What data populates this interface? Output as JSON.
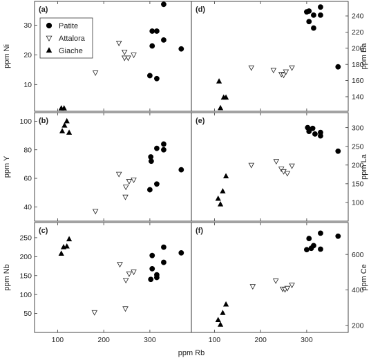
{
  "figure_xlabel": "ppm Rb",
  "legend": [
    {
      "label": "Patite",
      "marker": "circle"
    },
    {
      "label": "Attalora",
      "marker": "triangle-down-open"
    },
    {
      "label": "Giache",
      "marker": "triangle-up"
    }
  ],
  "chart_data": [
    {
      "type": "scatter",
      "panel": "(a)",
      "ylabel": "ppm Ni",
      "xlim": [
        50,
        390
      ],
      "ylim": [
        1,
        38
      ],
      "yticks": [
        10,
        20,
        30
      ],
      "xticks": [
        100,
        200,
        300
      ],
      "ytick_side": "left",
      "series": [
        {
          "name": "Patite",
          "marker": "circle",
          "points": [
            [
              305,
              28
            ],
            [
              315,
              28
            ],
            [
              330,
              37
            ],
            [
              305,
              23
            ],
            [
              330,
              25
            ],
            [
              300,
              13
            ],
            [
              315,
              12
            ],
            [
              368,
              22
            ]
          ]
        },
        {
          "name": "Attalora",
          "marker": "triangle-down-open",
          "points": [
            [
              182,
              14
            ],
            [
              233,
              24
            ],
            [
              245,
              21
            ],
            [
              245,
              19
            ],
            [
              253,
              19
            ],
            [
              265,
              20
            ]
          ]
        },
        {
          "name": "Giache",
          "marker": "triangle-up",
          "points": [
            [
              108,
              2
            ],
            [
              114,
              2
            ]
          ]
        }
      ]
    },
    {
      "type": "scatter",
      "panel": "(b)",
      "ylabel": "ppm Y",
      "xlim": [
        50,
        390
      ],
      "ylim": [
        30,
        106
      ],
      "yticks": [
        40,
        60,
        80,
        100
      ],
      "xticks": [
        100,
        200,
        300
      ],
      "ytick_side": "left",
      "series": [
        {
          "name": "Patite",
          "marker": "circle",
          "points": [
            [
              302,
              75
            ],
            [
              303,
              72
            ],
            [
              315,
              81
            ],
            [
              330,
              84
            ],
            [
              330,
              80
            ],
            [
              315,
              56
            ],
            [
              300,
              52
            ],
            [
              368,
              66
            ]
          ]
        },
        {
          "name": "Attalora",
          "marker": "triangle-down-open",
          "points": [
            [
              182,
              37
            ],
            [
              233,
              63
            ],
            [
              247,
              47
            ],
            [
              248,
              54
            ],
            [
              255,
              58
            ],
            [
              265,
              59
            ]
          ]
        },
        {
          "name": "Giache",
          "marker": "triangle-up",
          "points": [
            [
              110,
              93
            ],
            [
              115,
              97
            ],
            [
              120,
              100
            ],
            [
              125,
              92
            ]
          ]
        }
      ]
    },
    {
      "type": "scatter",
      "panel": "(c)",
      "ylabel": "ppm Nb",
      "xlim": [
        50,
        390
      ],
      "ylim": [
        0,
        290
      ],
      "yticks": [
        50,
        100,
        150,
        200,
        250
      ],
      "xticks": [
        100,
        200,
        300
      ],
      "ytick_side": "left",
      "series": [
        {
          "name": "Patite",
          "marker": "circle",
          "points": [
            [
              302,
              140
            ],
            [
              305,
              168
            ],
            [
              305,
              203
            ],
            [
              315,
              152
            ],
            [
              315,
              145
            ],
            [
              330,
              225
            ],
            [
              330,
              185
            ],
            [
              368,
              210
            ]
          ]
        },
        {
          "name": "Attalora",
          "marker": "triangle-down-open",
          "points": [
            [
              180,
              53
            ],
            [
              235,
              180
            ],
            [
              247,
              63
            ],
            [
              248,
              138
            ],
            [
              255,
              155
            ],
            [
              265,
              160
            ]
          ]
        },
        {
          "name": "Giache",
          "marker": "triangle-up",
          "points": [
            [
              108,
              208
            ],
            [
              113,
              225
            ],
            [
              120,
              227
            ],
            [
              125,
              246
            ]
          ]
        }
      ]
    },
    {
      "type": "scatter",
      "panel": "(d)",
      "ylabel": "ppm Ba",
      "xlim": [
        50,
        390
      ],
      "ylim": [
        122,
        258
      ],
      "yticks": [
        140,
        160,
        180,
        200,
        220,
        240
      ],
      "xticks": [
        100,
        200,
        300
      ],
      "ytick_side": "right",
      "series": [
        {
          "name": "Patite",
          "marker": "circle",
          "points": [
            [
              300,
              245
            ],
            [
              305,
              246
            ],
            [
              305,
              233
            ],
            [
              315,
              241
            ],
            [
              315,
              225
            ],
            [
              330,
              251
            ],
            [
              330,
              241
            ],
            [
              368,
              177
            ]
          ]
        },
        {
          "name": "Attalora",
          "marker": "triangle-down-open",
          "points": [
            [
              180,
              176
            ],
            [
              228,
              173
            ],
            [
              245,
              168
            ],
            [
              250,
              167
            ],
            [
              255,
              171
            ],
            [
              268,
              176
            ]
          ]
        },
        {
          "name": "Giache",
          "marker": "triangle-up",
          "points": [
            [
              110,
              159
            ],
            [
              113,
              126
            ],
            [
              120,
              139
            ],
            [
              125,
              139
            ]
          ]
        }
      ]
    },
    {
      "type": "scatter",
      "panel": "(e)",
      "ylabel": "ppm La",
      "xlim": [
        50,
        390
      ],
      "ylim": [
        50,
        340
      ],
      "yticks": [
        100,
        150,
        200,
        250,
        300
      ],
      "xticks": [
        100,
        200,
        300
      ],
      "ytick_side": "right",
      "series": [
        {
          "name": "Patite",
          "marker": "circle",
          "points": [
            [
              302,
              300
            ],
            [
              305,
              290
            ],
            [
              313,
              298
            ],
            [
              318,
              283
            ],
            [
              330,
              287
            ],
            [
              330,
              278
            ],
            [
              368,
              237
            ]
          ]
        },
        {
          "name": "Attalora",
          "marker": "triangle-down-open",
          "points": [
            [
              180,
              200
            ],
            [
              234,
              210
            ],
            [
              245,
              190
            ],
            [
              250,
              183
            ],
            [
              258,
              178
            ],
            [
              268,
              198
            ]
          ]
        },
        {
          "name": "Giache",
          "marker": "triangle-up",
          "points": [
            [
              108,
              110
            ],
            [
              113,
              95
            ],
            [
              118,
              130
            ],
            [
              125,
              170
            ]
          ]
        }
      ]
    },
    {
      "type": "scatter",
      "panel": "(f)",
      "ylabel": "ppm Ce",
      "xlim": [
        50,
        390
      ],
      "ylim": [
        160,
        780
      ],
      "yticks": [
        200,
        400,
        600
      ],
      "xticks": [
        100,
        200,
        300
      ],
      "ytick_side": "right",
      "series": [
        {
          "name": "Patite",
          "marker": "circle",
          "points": [
            [
              300,
              627
            ],
            [
              305,
              690
            ],
            [
              310,
              635
            ],
            [
              315,
              650
            ],
            [
              330,
              630
            ],
            [
              330,
              720
            ],
            [
              368,
              703
            ]
          ]
        },
        {
          "name": "Attalora",
          "marker": "triangle-down-open",
          "points": [
            [
              183,
              420
            ],
            [
              233,
              452
            ],
            [
              248,
              406
            ],
            [
              253,
              403
            ],
            [
              258,
              410
            ],
            [
              268,
              428
            ]
          ]
        },
        {
          "name": "Giache",
          "marker": "triangle-up",
          "points": [
            [
              108,
              230
            ],
            [
              113,
              204
            ],
            [
              118,
              270
            ],
            [
              125,
              318
            ]
          ]
        }
      ]
    }
  ]
}
